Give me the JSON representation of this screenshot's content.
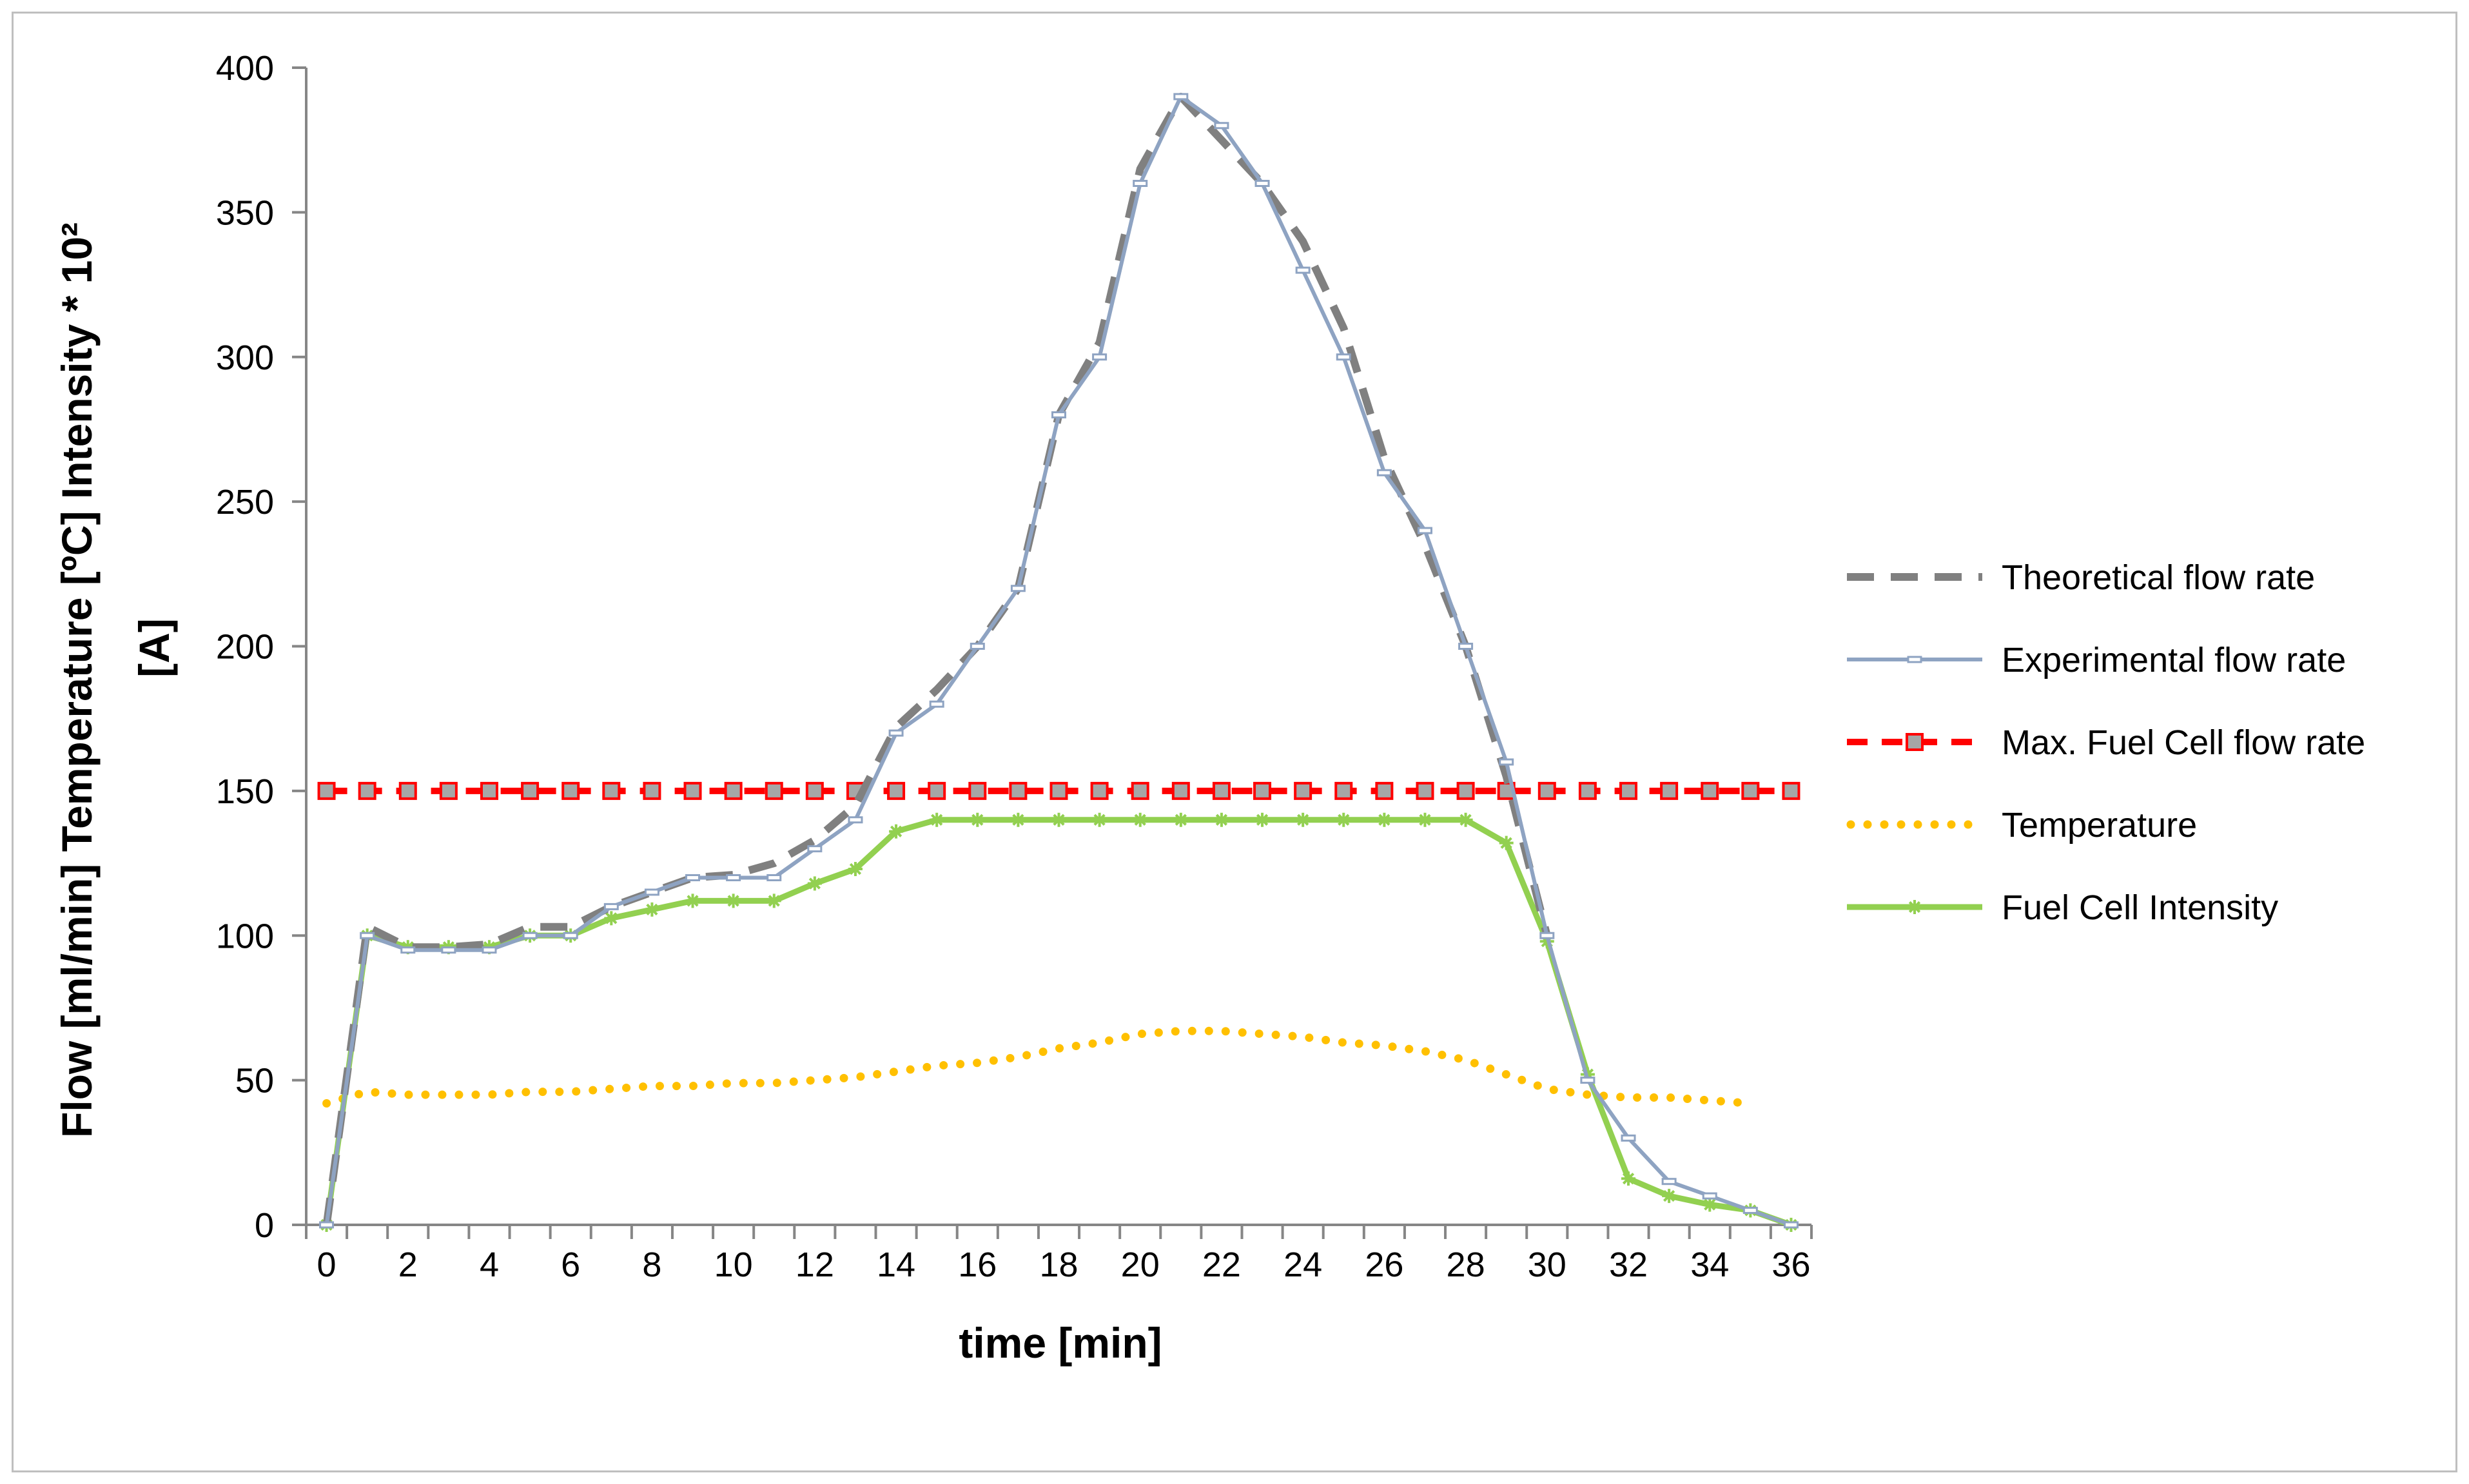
{
  "chart_data": {
    "type": "line",
    "title": "",
    "xlabel": "time [min]",
    "ylabel": "Flow [ml/min]   Temperature [ºC]   Intensity * 10² [A]",
    "ylabel_line1": "Flow [ml/min]   Temperature [ºC]   Intensity * 10²",
    "ylabel_line2": "[A]",
    "xlim": [
      -0.5,
      36.5
    ],
    "ylim": [
      0,
      400
    ],
    "xticks": [
      0,
      2,
      4,
      6,
      8,
      10,
      12,
      14,
      16,
      18,
      20,
      22,
      24,
      26,
      28,
      30,
      32,
      34,
      36
    ],
    "yticks": [
      0,
      50,
      100,
      150,
      200,
      250,
      300,
      350,
      400
    ],
    "grid": false,
    "legend_position": "right",
    "series": [
      {
        "name": "Theoretical flow rate",
        "style": "dashed",
        "color": "#808080",
        "x": [
          0,
          1,
          2,
          3,
          4,
          5,
          6,
          7,
          8,
          9,
          10,
          11,
          12,
          13,
          14,
          15,
          16,
          17,
          18,
          19,
          20,
          21,
          22,
          23,
          24,
          25,
          26,
          27,
          28,
          29,
          30
        ],
        "values": [
          0,
          103,
          96,
          96,
          97,
          103,
          103,
          110,
          115,
          120,
          121,
          125,
          133,
          145,
          172,
          185,
          200,
          220,
          280,
          305,
          365,
          390,
          375,
          360,
          340,
          310,
          265,
          235,
          200,
          155,
          100
        ]
      },
      {
        "name": "Experimental flow rate",
        "style": "solid",
        "color": "#8ea3c2",
        "x": [
          0,
          1,
          2,
          3,
          4,
          5,
          6,
          7,
          8,
          9,
          10,
          11,
          12,
          13,
          14,
          15,
          16,
          17,
          18,
          19,
          20,
          21,
          22,
          23,
          24,
          25,
          26,
          27,
          28,
          29,
          30,
          31,
          32,
          33,
          34,
          35,
          36
        ],
        "values": [
          0,
          100,
          95,
          95,
          95,
          100,
          100,
          110,
          115,
          120,
          120,
          120,
          130,
          140,
          170,
          180,
          200,
          220,
          280,
          300,
          360,
          390,
          380,
          360,
          330,
          300,
          260,
          240,
          200,
          160,
          100,
          50,
          30,
          15,
          10,
          5,
          0
        ]
      },
      {
        "name": "Max. Fuel Cell flow rate",
        "style": "dashed-square-markers",
        "color": "#ff0000",
        "marker_fill": "#a6a6a6",
        "x": [
          0,
          1,
          2,
          3,
          4,
          5,
          6,
          7,
          8,
          9,
          10,
          11,
          12,
          13,
          14,
          15,
          16,
          17,
          18,
          19,
          20,
          21,
          22,
          23,
          24,
          25,
          26,
          27,
          28,
          29,
          30,
          31,
          32,
          33,
          34,
          35,
          36
        ],
        "values": [
          150,
          150,
          150,
          150,
          150,
          150,
          150,
          150,
          150,
          150,
          150,
          150,
          150,
          150,
          150,
          150,
          150,
          150,
          150,
          150,
          150,
          150,
          150,
          150,
          150,
          150,
          150,
          150,
          150,
          150,
          150,
          150,
          150,
          150,
          150,
          150,
          150
        ]
      },
      {
        "name": "Temperature",
        "style": "dotted",
        "color": "#ffc000",
        "x": [
          0,
          1,
          2,
          3,
          4,
          5,
          6,
          7,
          8,
          9,
          10,
          11,
          12,
          13,
          14,
          15,
          16,
          17,
          18,
          19,
          20,
          21,
          22,
          23,
          24,
          25,
          26,
          27,
          28,
          29,
          30,
          31,
          32,
          33,
          34,
          35
        ],
        "values": [
          42,
          46,
          45,
          45,
          45,
          46,
          46,
          47,
          48,
          48,
          49,
          49,
          50,
          51,
          53,
          55,
          56,
          58,
          61,
          63,
          66,
          67,
          67,
          66,
          65,
          63,
          62,
          60,
          57,
          52,
          47,
          45,
          44,
          44,
          43,
          42
        ]
      },
      {
        "name": "Fuel Cell Intensity",
        "style": "solid-star-markers",
        "color": "#92d050",
        "x": [
          0,
          1,
          2,
          3,
          4,
          5,
          6,
          7,
          8,
          9,
          10,
          11,
          12,
          13,
          14,
          15,
          16,
          17,
          18,
          19,
          20,
          21,
          22,
          23,
          24,
          25,
          26,
          27,
          28,
          29,
          30,
          31,
          32,
          33,
          34,
          35,
          36
        ],
        "values": [
          0,
          100,
          96,
          96,
          96,
          100,
          100,
          106,
          109,
          112,
          112,
          112,
          118,
          123,
          136,
          140,
          140,
          140,
          140,
          140,
          140,
          140,
          140,
          140,
          140,
          140,
          140,
          140,
          140,
          132,
          98,
          52,
          16,
          10,
          7,
          5,
          0
        ]
      }
    ]
  }
}
